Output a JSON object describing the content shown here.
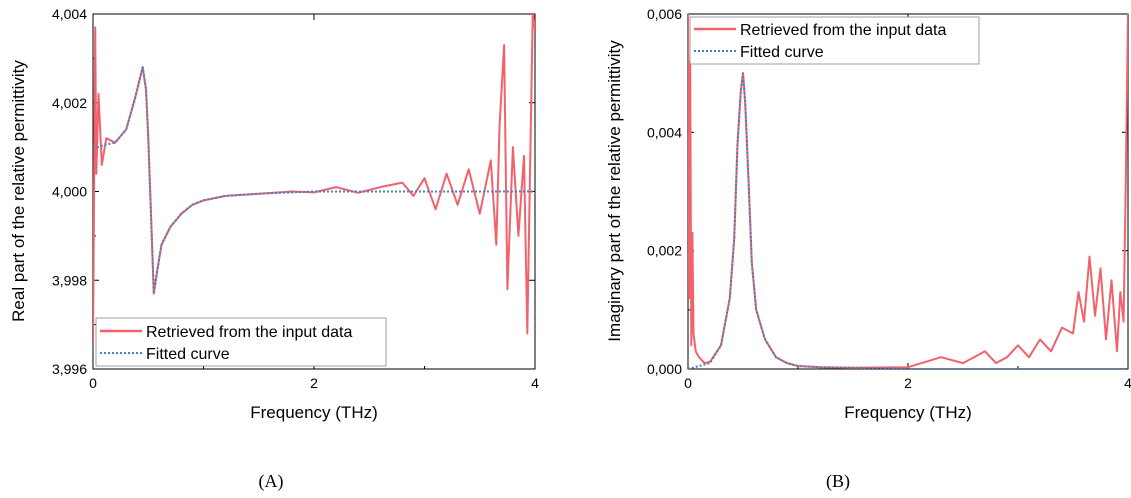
{
  "chart_data": [
    {
      "type": "line",
      "caption": "(A)",
      "xlabel": "Frequency (THz)",
      "ylabel": "Real part of the relative permittivity",
      "xlim": [
        0,
        4
      ],
      "ylim": [
        3.996,
        4.004
      ],
      "xticks": [
        0,
        2,
        4
      ],
      "xtick_labels": [
        "0",
        "2",
        "4"
      ],
      "yticks": [
        3.996,
        3.998,
        4.0,
        4.002,
        4.004
      ],
      "ytick_labels": [
        "3,996",
        "3,998",
        "4,000",
        "4,002",
        "4,004"
      ],
      "legend": {
        "position": "bottom-left"
      },
      "series": [
        {
          "name": "Retrieved from the input data",
          "color": "#f2626c",
          "style": "solid",
          "x": [
            0,
            0.02,
            0.03,
            0.05,
            0.08,
            0.12,
            0.2,
            0.3,
            0.38,
            0.42,
            0.45,
            0.48,
            0.5,
            0.52,
            0.55,
            0.58,
            0.62,
            0.7,
            0.8,
            0.9,
            1.0,
            1.2,
            1.5,
            1.8,
            2.0,
            2.2,
            2.4,
            2.6,
            2.8,
            2.9,
            3.0,
            3.1,
            3.2,
            3.3,
            3.4,
            3.5,
            3.6,
            3.65,
            3.68,
            3.72,
            3.75,
            3.8,
            3.85,
            3.9,
            3.93,
            3.96,
            3.98,
            4.0
          ],
          "y": [
            3.9965,
            4.0037,
            4.0004,
            4.0022,
            4.0006,
            4.0012,
            4.0011,
            4.0014,
            4.0021,
            4.0025,
            4.0028,
            4.0023,
            4.0012,
            3.9998,
            3.9977,
            3.9982,
            3.9988,
            3.9992,
            3.9995,
            3.9997,
            3.9998,
            3.9999,
            3.99995,
            4.0,
            3.99998,
            4.0001,
            3.99997,
            4.0001,
            4.0002,
            3.9999,
            4.0003,
            3.9996,
            4.0004,
            3.9997,
            4.0005,
            3.9995,
            4.0007,
            3.9988,
            4.0015,
            4.0033,
            3.9978,
            4.001,
            3.999,
            4.0008,
            3.9968,
            4.0012,
            4.0041,
            4.0036
          ]
        },
        {
          "name": "Fitted curve",
          "color": "#4a7fc1",
          "style": "dotted",
          "x": [
            0,
            0.05,
            0.1,
            0.2,
            0.3,
            0.38,
            0.42,
            0.45,
            0.48,
            0.5,
            0.52,
            0.55,
            0.58,
            0.62,
            0.7,
            0.8,
            0.9,
            1.0,
            1.2,
            1.5,
            2.0,
            2.5,
            3.0,
            3.5,
            4.0
          ],
          "y": [
            4.001,
            4.001,
            4.00105,
            4.0011,
            4.0014,
            4.0021,
            4.0025,
            4.0028,
            4.0023,
            4.0012,
            3.9998,
            3.9977,
            3.9982,
            3.9988,
            3.9992,
            3.9995,
            3.9997,
            3.9998,
            3.9999,
            3.99995,
            4.0,
            4.0,
            4.0,
            4.0,
            4.0
          ]
        }
      ]
    },
    {
      "type": "line",
      "caption": "(B)",
      "xlabel": "Frequency (THz)",
      "ylabel": "Imaginary part of the relative permittivity",
      "xlim": [
        0,
        4
      ],
      "ylim": [
        0,
        0.006
      ],
      "xticks": [
        0,
        2,
        4
      ],
      "xtick_labels": [
        "0",
        "2",
        "4"
      ],
      "yticks": [
        0,
        0.002,
        0.004,
        0.006
      ],
      "ytick_labels": [
        "0,000",
        "0,002",
        "0,004",
        "0,006"
      ],
      "legend": {
        "position": "top-left"
      },
      "series": [
        {
          "name": "Retrieved from the input data",
          "color": "#f2626c",
          "style": "solid",
          "x": [
            0,
            0.01,
            0.02,
            0.03,
            0.04,
            0.05,
            0.07,
            0.1,
            0.15,
            0.2,
            0.3,
            0.38,
            0.42,
            0.45,
            0.48,
            0.5,
            0.52,
            0.55,
            0.58,
            0.62,
            0.7,
            0.8,
            0.9,
            1.0,
            1.2,
            1.5,
            2.0,
            2.3,
            2.5,
            2.6,
            2.7,
            2.8,
            2.9,
            3.0,
            3.1,
            3.2,
            3.3,
            3.4,
            3.5,
            3.55,
            3.6,
            3.65,
            3.7,
            3.75,
            3.8,
            3.85,
            3.9,
            3.93,
            3.96,
            3.98,
            4.0
          ],
          "y": [
            0.006,
            0.0012,
            0.0052,
            0.0004,
            0.0023,
            0.0006,
            0.0003,
            0.0002,
            0.0001,
            0.00012,
            0.0004,
            0.0012,
            0.0022,
            0.0038,
            0.0047,
            0.005,
            0.0045,
            0.0032,
            0.0018,
            0.001,
            0.0005,
            0.0002,
            0.0001,
            5e-05,
            3e-05,
            2e-05,
            3e-05,
            0.0002,
            0.0001,
            0.0002,
            0.0003,
            0.0001,
            0.0002,
            0.0004,
            0.0002,
            0.0005,
            0.0003,
            0.0007,
            0.0006,
            0.0013,
            0.0008,
            0.0019,
            0.0009,
            0.0017,
            0.0005,
            0.0015,
            0.0003,
            0.0013,
            0.0008,
            0.0032,
            0.006
          ]
        },
        {
          "name": "Fitted curve",
          "color": "#4a7fc1",
          "style": "dotted",
          "x": [
            0,
            0.1,
            0.2,
            0.3,
            0.38,
            0.42,
            0.45,
            0.48,
            0.5,
            0.52,
            0.55,
            0.58,
            0.62,
            0.7,
            0.8,
            0.9,
            1.0,
            1.2,
            1.5,
            2.0,
            2.5,
            3.0,
            3.5,
            4.0
          ],
          "y": [
            0.0,
            5e-05,
            0.0001,
            0.0004,
            0.0012,
            0.0022,
            0.0038,
            0.0047,
            0.005,
            0.0045,
            0.0032,
            0.0018,
            0.001,
            0.0005,
            0.0002,
            0.0001,
            5e-05,
            3e-05,
            2e-05,
            0.0,
            0.0,
            0.0,
            0.0,
            0.0
          ]
        }
      ]
    }
  ]
}
